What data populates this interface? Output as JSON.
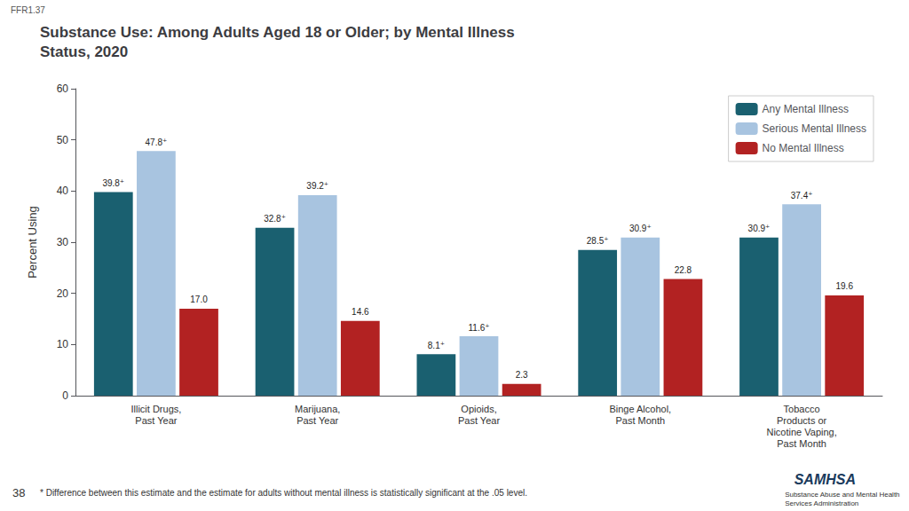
{
  "chart_data": {
    "type": "bar",
    "title": "Substance Use: Among Adults Aged 18 or Older; by Mental Illness\nStatus, 2020",
    "categories": [
      "Illicit Drugs,\nPast Year",
      "Marijuana,\nPast Year",
      "Opioids,\nPast Year",
      "Binge Alcohol,\nPast Month",
      "Tobacco\nProducts or\nNicotine Vaping,\nPast Month"
    ],
    "series": [
      {
        "name": "Any Mental Illness",
        "color": "#1a6070",
        "values": [
          39.8,
          32.8,
          8.1,
          28.5,
          30.9
        ],
        "value_labels": [
          "39.8⁺",
          "32.8⁺",
          "8.1⁺",
          "28.5⁺",
          "30.9⁺"
        ]
      },
      {
        "name": "Serious Mental Illness",
        "color": "#a8c4e0",
        "values": [
          47.8,
          39.2,
          11.6,
          30.9,
          37.4
        ],
        "value_labels": [
          "47.8⁺",
          "39.2⁺",
          "11.6⁺",
          "30.9⁺",
          "37.4⁺"
        ]
      },
      {
        "name": "No Mental Illness",
        "color": "#b22222",
        "values": [
          17.0,
          14.6,
          2.3,
          22.8,
          19.6
        ],
        "value_labels": [
          "17.0",
          "14.6",
          "2.3",
          "22.8",
          "19.6"
        ]
      }
    ],
    "ylabel": "Percent Using",
    "ylim": [
      0,
      60
    ],
    "yticks": [
      0,
      10,
      20,
      30,
      40,
      50,
      60
    ],
    "grid": false,
    "legend": "upper right",
    "data_labels": true,
    "annotations": [
      "FFR1.37",
      "38",
      "* Difference between this estimate and the estimate for adults without mental illness is statistically significant at the .05 level.",
      "SAMHSA",
      "Substance Abuse and Mental Health\nServices Administration"
    ]
  }
}
